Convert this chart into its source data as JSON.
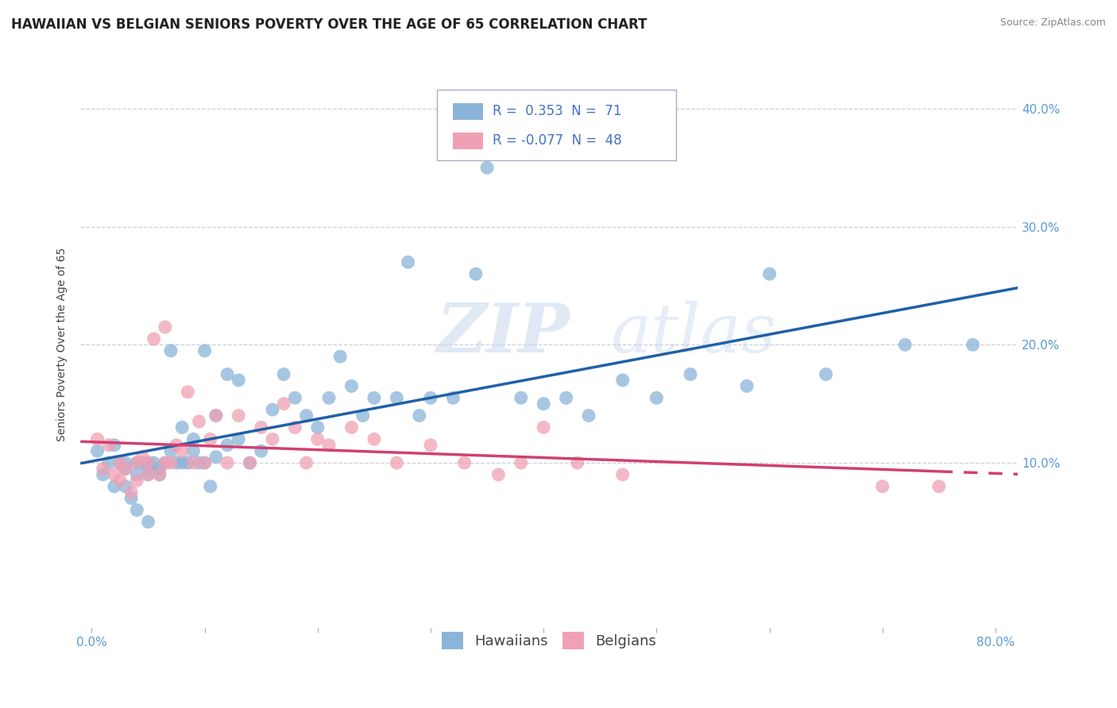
{
  "title": "HAWAIIAN VS BELGIAN SENIORS POVERTY OVER THE AGE OF 65 CORRELATION CHART",
  "source": "Source: ZipAtlas.com",
  "ylabel": "Seniors Poverty Over the Age of 65",
  "xlim": [
    -0.01,
    0.82
  ],
  "ylim": [
    -0.04,
    0.44
  ],
  "ytick_positions": [
    0.1,
    0.2,
    0.3,
    0.4
  ],
  "ytick_labels": [
    "10.0%",
    "20.0%",
    "30.0%",
    "40.0%"
  ],
  "xtick_positions": [
    0.0,
    0.1,
    0.2,
    0.3,
    0.4,
    0.5,
    0.6,
    0.7,
    0.8
  ],
  "xtick_labels": [
    "0.0%",
    "",
    "",
    "",
    "",
    "",
    "",
    "",
    "80.0%"
  ],
  "hawaiian_R": 0.353,
  "hawaiian_N": 71,
  "belgian_R": -0.077,
  "belgian_N": 48,
  "hawaiian_color": "#8ab4d8",
  "belgian_color": "#f0a0b4",
  "hawaiian_line_color": "#2060a8",
  "belgian_line_color": "#d04070",
  "hawaiian_x": [
    0.005,
    0.01,
    0.015,
    0.02,
    0.02,
    0.025,
    0.03,
    0.03,
    0.03,
    0.035,
    0.04,
    0.04,
    0.04,
    0.045,
    0.05,
    0.05,
    0.05,
    0.05,
    0.055,
    0.06,
    0.06,
    0.065,
    0.07,
    0.07,
    0.075,
    0.08,
    0.08,
    0.085,
    0.09,
    0.09,
    0.095,
    0.1,
    0.1,
    0.105,
    0.11,
    0.11,
    0.12,
    0.12,
    0.13,
    0.13,
    0.14,
    0.15,
    0.16,
    0.17,
    0.18,
    0.19,
    0.2,
    0.21,
    0.22,
    0.23,
    0.24,
    0.25,
    0.27,
    0.28,
    0.29,
    0.3,
    0.32,
    0.34,
    0.35,
    0.38,
    0.4,
    0.42,
    0.44,
    0.47,
    0.5,
    0.53,
    0.58,
    0.6,
    0.65,
    0.72,
    0.78
  ],
  "hawaiian_y": [
    0.11,
    0.09,
    0.1,
    0.115,
    0.08,
    0.1,
    0.095,
    0.08,
    0.1,
    0.07,
    0.09,
    0.1,
    0.06,
    0.1,
    0.09,
    0.095,
    0.1,
    0.05,
    0.1,
    0.095,
    0.09,
    0.1,
    0.11,
    0.195,
    0.1,
    0.13,
    0.1,
    0.1,
    0.11,
    0.12,
    0.1,
    0.1,
    0.195,
    0.08,
    0.105,
    0.14,
    0.115,
    0.175,
    0.12,
    0.17,
    0.1,
    0.11,
    0.145,
    0.175,
    0.155,
    0.14,
    0.13,
    0.155,
    0.19,
    0.165,
    0.14,
    0.155,
    0.155,
    0.27,
    0.14,
    0.155,
    0.155,
    0.26,
    0.35,
    0.155,
    0.15,
    0.155,
    0.14,
    0.17,
    0.155,
    0.175,
    0.165,
    0.26,
    0.175,
    0.2,
    0.2
  ],
  "belgian_x": [
    0.005,
    0.01,
    0.015,
    0.02,
    0.025,
    0.025,
    0.03,
    0.035,
    0.04,
    0.04,
    0.045,
    0.05,
    0.05,
    0.055,
    0.06,
    0.065,
    0.065,
    0.07,
    0.075,
    0.08,
    0.085,
    0.09,
    0.095,
    0.1,
    0.105,
    0.11,
    0.12,
    0.13,
    0.14,
    0.15,
    0.16,
    0.17,
    0.18,
    0.19,
    0.2,
    0.21,
    0.23,
    0.25,
    0.27,
    0.3,
    0.33,
    0.36,
    0.38,
    0.4,
    0.43,
    0.47,
    0.7,
    0.75
  ],
  "belgian_y": [
    0.12,
    0.095,
    0.115,
    0.09,
    0.085,
    0.1,
    0.095,
    0.075,
    0.085,
    0.1,
    0.105,
    0.09,
    0.1,
    0.205,
    0.09,
    0.1,
    0.215,
    0.1,
    0.115,
    0.11,
    0.16,
    0.1,
    0.135,
    0.1,
    0.12,
    0.14,
    0.1,
    0.14,
    0.1,
    0.13,
    0.12,
    0.15,
    0.13,
    0.1,
    0.12,
    0.115,
    0.13,
    0.12,
    0.1,
    0.115,
    0.1,
    0.09,
    0.1,
    0.13,
    0.1,
    0.09,
    0.08,
    0.08
  ],
  "background_color": "#ffffff",
  "grid_color": "#c8c8d8",
  "title_fontsize": 12,
  "axis_fontsize": 10,
  "tick_fontsize": 11,
  "legend_fontsize": 12
}
